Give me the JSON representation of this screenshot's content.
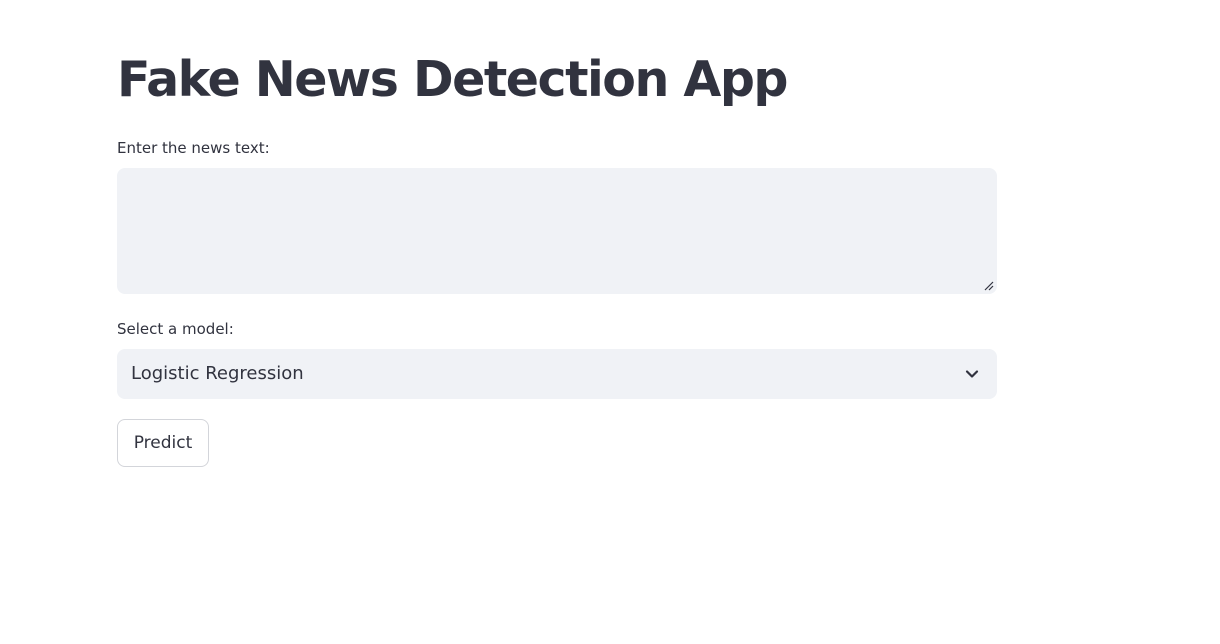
{
  "header": {
    "title": "Fake News Detection App"
  },
  "news_input": {
    "label": "Enter the news text:",
    "value": "",
    "placeholder": ""
  },
  "model_select": {
    "label": "Select a model:",
    "selected": "Logistic Regression",
    "icon": "chevron-down-icon"
  },
  "actions": {
    "predict_label": "Predict"
  },
  "colors": {
    "text": "#31333f",
    "input_background": "#f0f2f6",
    "button_border": "#d3d5da",
    "page_background": "#ffffff"
  }
}
